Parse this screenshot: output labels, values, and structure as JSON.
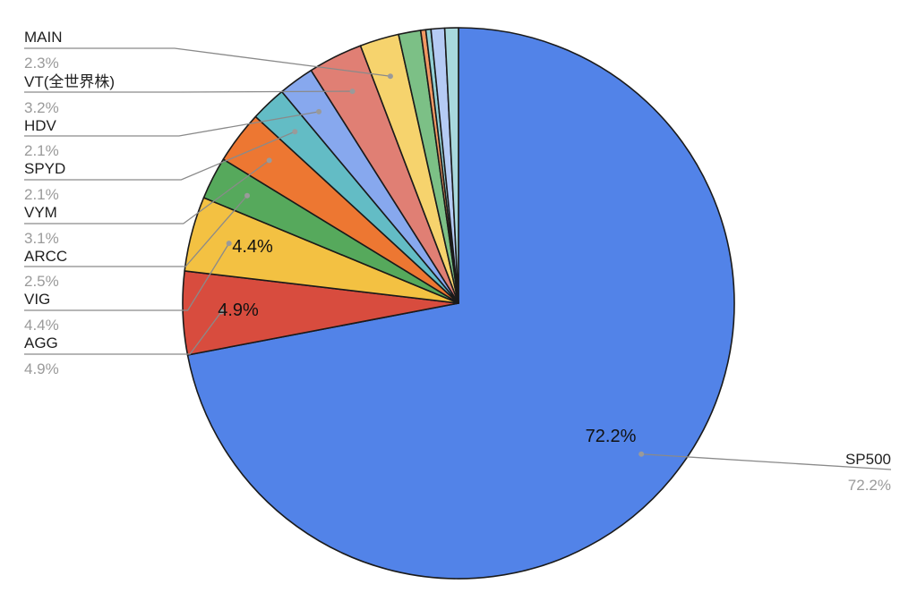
{
  "chart_data": {
    "type": "pie",
    "slices": [
      {
        "name": "SP500",
        "value": 72.2,
        "label": "72.2%",
        "color": "#5283e8"
      },
      {
        "name": "AGG",
        "value": 4.9,
        "label": "4.9%",
        "color": "#d84c3e"
      },
      {
        "name": "VIG",
        "value": 4.4,
        "label": "4.4%",
        "color": "#f3c142"
      },
      {
        "name": "ARCC",
        "value": 2.5,
        "label": "2.5%",
        "color": "#56a95c"
      },
      {
        "name": "VYM",
        "value": 3.1,
        "label": "3.1%",
        "color": "#ed7732"
      },
      {
        "name": "SPYD",
        "value": 2.1,
        "label": "2.1%",
        "color": "#63bcc5"
      },
      {
        "name": "HDV",
        "value": 2.1,
        "label": "2.1%",
        "color": "#87a8ee"
      },
      {
        "name": "VT(全世界株)",
        "value": 3.2,
        "label": "3.2%",
        "color": "#e07f74"
      },
      {
        "name": "MAIN",
        "value": 2.3,
        "label": "2.3%",
        "color": "#f6d36d"
      },
      {
        "name": "",
        "value": 1.3,
        "label": "",
        "color": "#7cc086"
      },
      {
        "name": "",
        "value": 0.3,
        "label": "",
        "color": "#f29863"
      },
      {
        "name": "",
        "value": 0.3,
        "label": "",
        "color": "#93d0d5"
      },
      {
        "name": "",
        "value": 0.8,
        "label": "",
        "color": "#b5cbf4"
      },
      {
        "name": "",
        "value": 0.8,
        "label": "",
        "color": "#a8d8dd"
      }
    ],
    "inside_labels": [
      "72.2%",
      "4.9%",
      "4.4%"
    ],
    "legend": "callouts"
  }
}
